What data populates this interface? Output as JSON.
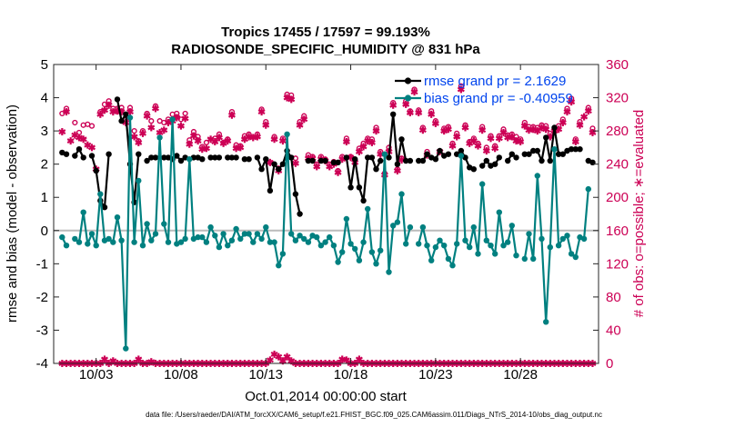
{
  "chart_data": {
    "type": "line",
    "title": "Tropics 17455 / 17597 = 99.193%",
    "subtitle": "RADIOSONDE_SPECIFIC_HUMIDITY @ 831 hPa",
    "xlabel": "Oct.01,2014 00:00:00 start",
    "ylabel": "rmse and bias (model - observation)",
    "y2label": "# of obs: o=possible; ∗=evaluated",
    "footer": "data file: /Users/raeder/DAI/ATM_forcXX/CAM6_setup/f.e21.FHIST_BGC.f09_025.CAM6assim.011/Diags_NTrS_2014-10/obs_diag_output.nc",
    "xlim": [
      0.5,
      32.6
    ],
    "ylim": [
      -4,
      5
    ],
    "y2lim": [
      0,
      360
    ],
    "x_ticks": [
      3,
      8,
      13,
      18,
      23,
      28
    ],
    "x_tick_labels": [
      "10/03",
      "10/08",
      "10/13",
      "10/18",
      "10/23",
      "10/28"
    ],
    "y_ticks": [
      -4,
      -3,
      -2,
      -1,
      0,
      1,
      2,
      3,
      4,
      5
    ],
    "y2_ticks": [
      0,
      40,
      80,
      120,
      160,
      200,
      240,
      280,
      320,
      360
    ],
    "x": [
      1.0,
      1.25,
      1.5,
      1.75,
      2.0,
      2.25,
      2.5,
      2.75,
      3.0,
      3.25,
      3.5,
      3.75,
      4.0,
      4.25,
      4.5,
      4.75,
      5.0,
      5.25,
      5.5,
      5.75,
      6.0,
      6.25,
      6.5,
      6.75,
      7.0,
      7.25,
      7.5,
      7.75,
      8.0,
      8.25,
      8.5,
      8.75,
      9.0,
      9.25,
      9.5,
      9.75,
      10.0,
      10.25,
      10.5,
      10.75,
      11.0,
      11.25,
      11.5,
      11.75,
      12.0,
      12.25,
      12.5,
      12.75,
      13.0,
      13.25,
      13.5,
      13.75,
      14.0,
      14.25,
      14.5,
      14.75,
      15.0,
      15.25,
      15.5,
      15.75,
      16.0,
      16.25,
      16.5,
      16.75,
      17.0,
      17.25,
      17.5,
      17.75,
      18.0,
      18.25,
      18.5,
      18.75,
      19.0,
      19.25,
      19.5,
      19.75,
      20.0,
      20.25,
      20.5,
      20.75,
      21.0,
      21.25,
      21.5,
      21.75,
      22.0,
      22.25,
      22.5,
      22.75,
      23.0,
      23.25,
      23.5,
      23.75,
      24.0,
      24.25,
      24.5,
      24.75,
      25.0,
      25.25,
      25.5,
      25.75,
      26.0,
      26.25,
      26.5,
      26.75,
      27.0,
      27.25,
      27.5,
      27.75,
      28.0,
      28.25,
      28.5,
      28.75,
      29.0,
      29.25,
      29.5,
      29.75,
      30.0,
      30.25,
      30.5,
      30.75,
      31.0,
      31.25,
      31.5,
      31.75,
      32.0,
      32.25
    ],
    "series": [
      {
        "name": "rmse",
        "legend": "rmse grand pr = 2.1629",
        "color": "#000000",
        "values": [
          2.35,
          2.3,
          null,
          2.25,
          2.45,
          2.2,
          null,
          2.25,
          1.8,
          0.9,
          0.7,
          2.3,
          null,
          3.95,
          3.3,
          3.5,
          2.0,
          0.85,
          2.3,
          null,
          2.1,
          2.2,
          2.2,
          null,
          2.2,
          2.2,
          2.15,
          2.25,
          2.1,
          2.2,
          null,
          2.2,
          2.2,
          2.15,
          null,
          2.2,
          2.2,
          2.2,
          null,
          2.2,
          2.2,
          2.2,
          null,
          2.15,
          2.15,
          null,
          2.2,
          1.85,
          2.15,
          1.2,
          2.0,
          1.85,
          2.0,
          2.4,
          2.2,
          1.1,
          0.5,
          null,
          2.1,
          2.1,
          null,
          2.1,
          2.1,
          null,
          2.05,
          2.05,
          null,
          2.2,
          1.3,
          2.15,
          1.3,
          0.9,
          2.2,
          2.2,
          1.85,
          2.1,
          null,
          2.2,
          3.5,
          2.0,
          2.75,
          2.1,
          2.1,
          null,
          2.1,
          2.1,
          2.3,
          2.2,
          2.15,
          2.4,
          2.25,
          2.3,
          null,
          2.3,
          2.4,
          2.2,
          1.9,
          1.85,
          null,
          1.95,
          2.1,
          1.95,
          2.0,
          2.2,
          null,
          2.1,
          2.3,
          2.2,
          null,
          2.3,
          2.3,
          2.4,
          2.4,
          2.1,
          2.8,
          2.1,
          3.1,
          2.3,
          2.3,
          2.4,
          2.45,
          2.45,
          2.45,
          null,
          2.1,
          2.05
        ]
      },
      {
        "name": "bias",
        "legend": "bias grand pr = -0.40959",
        "color": "#008080",
        "values": [
          -0.2,
          -0.45,
          null,
          -0.25,
          -0.35,
          0.55,
          -0.4,
          -0.1,
          -0.45,
          1.1,
          -0.3,
          -0.25,
          -0.35,
          0.4,
          -0.3,
          -3.55,
          3.4,
          -0.35,
          1.5,
          -0.45,
          0.2,
          -0.3,
          -0.1,
          2.8,
          0.2,
          -0.35,
          3.35,
          -0.4,
          -0.35,
          -0.25,
          2.15,
          -0.25,
          -0.2,
          -0.2,
          -0.35,
          0.1,
          -0.15,
          -0.5,
          -0.1,
          -0.45,
          -0.3,
          0.05,
          -0.25,
          -0.1,
          -0.1,
          -0.35,
          -0.1,
          -0.25,
          0.1,
          -0.35,
          -0.35,
          -1.05,
          -0.7,
          2.9,
          -0.1,
          -0.3,
          -0.15,
          -0.25,
          -0.35,
          -0.15,
          -0.2,
          -0.45,
          -0.35,
          -0.2,
          -0.45,
          -0.95,
          -0.65,
          0.35,
          -0.4,
          -0.55,
          -0.9,
          -0.35,
          0.65,
          -0.65,
          -1.0,
          -0.6,
          2.3,
          -1.25,
          0.15,
          0.25,
          1.1,
          -0.4,
          0.1,
          null,
          -0.4,
          0.1,
          -0.45,
          -0.9,
          -0.5,
          -0.3,
          -0.45,
          -0.85,
          -1.05,
          -0.4,
          2.25,
          -0.3,
          -0.5,
          0.1,
          -0.7,
          1.4,
          -0.3,
          -0.45,
          -0.7,
          0.55,
          -0.45,
          -0.35,
          0.15,
          -0.75,
          null,
          -0.85,
          -0.1,
          -0.85,
          1.65,
          -0.25,
          -2.75,
          -0.5,
          2.45,
          -0.45,
          -0.25,
          -0.15,
          -0.7,
          -0.8,
          -0.2,
          -0.25,
          1.25,
          null
        ]
      }
    ],
    "obs_possible": [
      301,
      307,
      null,
      290,
      278,
      287,
      288,
      286,
      232,
      303,
      312,
      316,
      307,
      307,
      308,
      294,
      308,
      280,
      268,
      280,
      301,
      292,
      310,
      292,
      290,
      294,
      300,
      301,
      294,
      301,
      269,
      279,
      273,
      261,
      266,
      null,
      271,
      276,
      266,
      270,
      303,
      263,
      262,
      274,
      276,
      null,
      276,
      306,
      291,
      242,
      273,
      235,
      271,
      324,
      323,
      247,
      291,
      298,
      251,
      249,
      240,
      249,
      246,
      240,
      243,
      232,
      249,
      271,
      249,
      245,
      259,
      265,
      271,
      270,
      284,
      255,
      229,
      260,
      314,
      234,
      247,
      316,
      304,
      330,
      305,
      284,
      255,
      304,
      292,
      null,
      283,
      285,
      265,
      277,
      334,
      287,
      267,
      271,
      265,
      285,
      260,
      274,
      262,
      274,
      282,
      275,
      276,
      273,
      270,
      290,
      285,
      285,
      284,
      287,
      286,
      277,
      283,
      286,
      294,
      307,
      319,
      270,
      291,
      null,
      308,
      283
    ],
    "obs_evaluated": [
      279,
      303,
      268,
      275,
      272,
      270,
      263,
      260,
      234,
      300,
      305,
      311,
      303,
      304,
      303,
      290,
      303,
      273,
      266,
      277,
      298,
      284,
      307,
      278,
      281,
      290,
      292,
      296,
      286,
      295,
      264,
      274,
      268,
      258,
      259,
      270,
      267,
      272,
      265,
      268,
      299,
      259,
      260,
      270,
      273,
      272,
      273,
      303,
      287,
      242,
      270,
      232,
      268,
      320,
      318,
      241,
      287,
      294,
      247,
      247,
      237,
      246,
      244,
      237,
      240,
      230,
      246,
      267,
      248,
      242,
      255,
      261,
      268,
      266,
      280,
      252,
      227,
      255,
      311,
      232,
      245,
      312,
      302,
      327,
      302,
      281,
      251,
      300,
      289,
      255,
      280,
      282,
      262,
      273,
      330,
      284,
      265,
      268,
      262,
      281,
      256,
      271,
      259,
      271,
      278,
      272,
      273,
      268,
      267,
      286,
      281,
      282,
      280,
      284,
      282,
      273,
      280,
      282,
      290,
      303,
      315,
      267,
      287,
      297,
      304,
      278
    ],
    "obs_low": [
      0,
      0,
      0,
      0,
      0,
      0,
      0,
      0,
      0,
      0,
      5,
      0,
      3,
      0,
      0,
      0,
      0,
      0,
      5,
      0,
      0,
      2,
      0,
      0,
      0,
      0,
      0,
      0,
      0,
      0,
      0,
      0,
      0,
      0,
      0,
      0,
      0,
      0,
      0,
      0,
      0,
      0,
      0,
      0,
      0,
      0,
      0,
      0,
      0,
      4,
      11,
      8,
      3,
      8,
      3,
      0,
      0,
      0,
      0,
      0,
      0,
      0,
      0,
      0,
      0,
      0,
      5,
      4,
      0,
      0,
      5,
      0,
      0,
      0,
      0,
      0,
      0,
      0,
      0,
      0,
      0,
      0,
      0,
      0,
      0,
      0,
      0,
      0,
      0,
      0,
      0,
      0,
      0,
      0,
      0,
      0,
      0,
      0,
      0,
      0,
      0,
      0,
      0,
      0,
      0,
      0,
      0,
      0,
      0,
      0,
      0,
      0,
      0,
      0,
      0,
      0,
      0,
      0,
      0,
      0,
      0,
      0,
      0,
      0,
      0,
      0
    ],
    "colors": {
      "obs": "#cc0055",
      "rmse": "#000000",
      "bias": "#008080",
      "zero_line": "#bbbbbb",
      "legend_text": "#0044ee"
    }
  }
}
